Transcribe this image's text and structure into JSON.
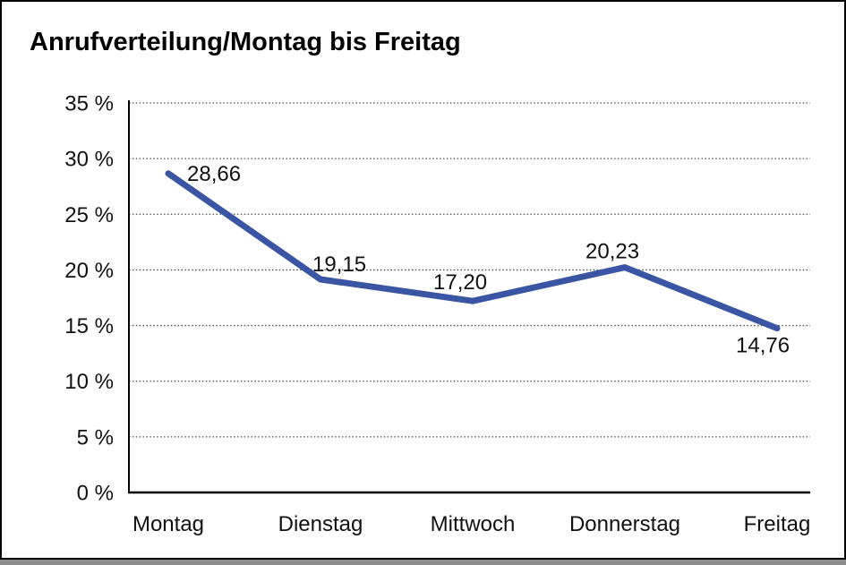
{
  "chart_data": {
    "type": "line",
    "title": "Anrufverteilung/Montag bis Freitag",
    "categories": [
      "Montag",
      "Dienstag",
      "Mittwoch",
      "Donnerstag",
      "Freitag"
    ],
    "values": [
      28.66,
      19.15,
      17.2,
      20.23,
      14.76
    ],
    "point_labels": [
      "28,66",
      "19,15",
      "17,20",
      "20,23",
      "14,76"
    ],
    "y_ticks": [
      "0 %",
      "5 %",
      "10 %",
      "15 %",
      "20 %",
      "25 %",
      "30 %",
      "35 %"
    ],
    "ylim": [
      0,
      35
    ],
    "y_tick_step": 5,
    "y_unit": "%",
    "decimal_separator": ",",
    "grid": "horizontal-dotted",
    "legend": "none",
    "line_color": "#3a55a4",
    "label_color": "#111111",
    "axis_color": "#000000",
    "gridline_color": "#4a4a4a",
    "background": "#ffffff",
    "frame_border_color": "#000000",
    "frame_shadow_color": "#8c8c8c"
  }
}
